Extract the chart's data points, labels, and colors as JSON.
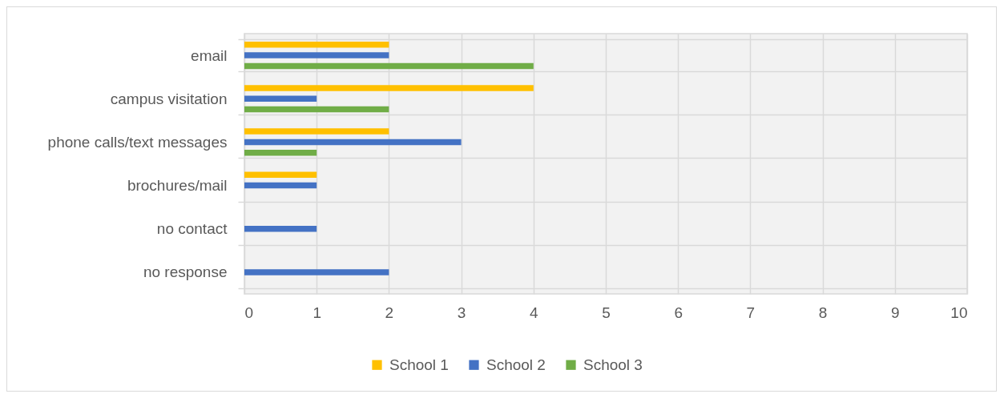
{
  "chart_data": {
    "type": "bar",
    "orientation": "horizontal",
    "categories": [
      "email",
      "campus visitation",
      "phone calls/text messages",
      "brochures/mail",
      "no contact",
      "no response"
    ],
    "series": [
      {
        "name": "School 1",
        "color": "#ffc000",
        "values": [
          2,
          4,
          2,
          1,
          null,
          null
        ]
      },
      {
        "name": "School 2",
        "color": "#4472c4",
        "values": [
          2,
          1,
          3,
          1,
          1,
          2
        ]
      },
      {
        "name": "School 3",
        "color": "#70ad47",
        "values": [
          4,
          2,
          1,
          null,
          null,
          null
        ]
      }
    ],
    "xlim": [
      0,
      10
    ],
    "xticks": [
      0,
      1,
      2,
      3,
      4,
      5,
      6,
      7,
      8,
      9,
      10
    ],
    "grid": true,
    "legend": "bottom"
  }
}
